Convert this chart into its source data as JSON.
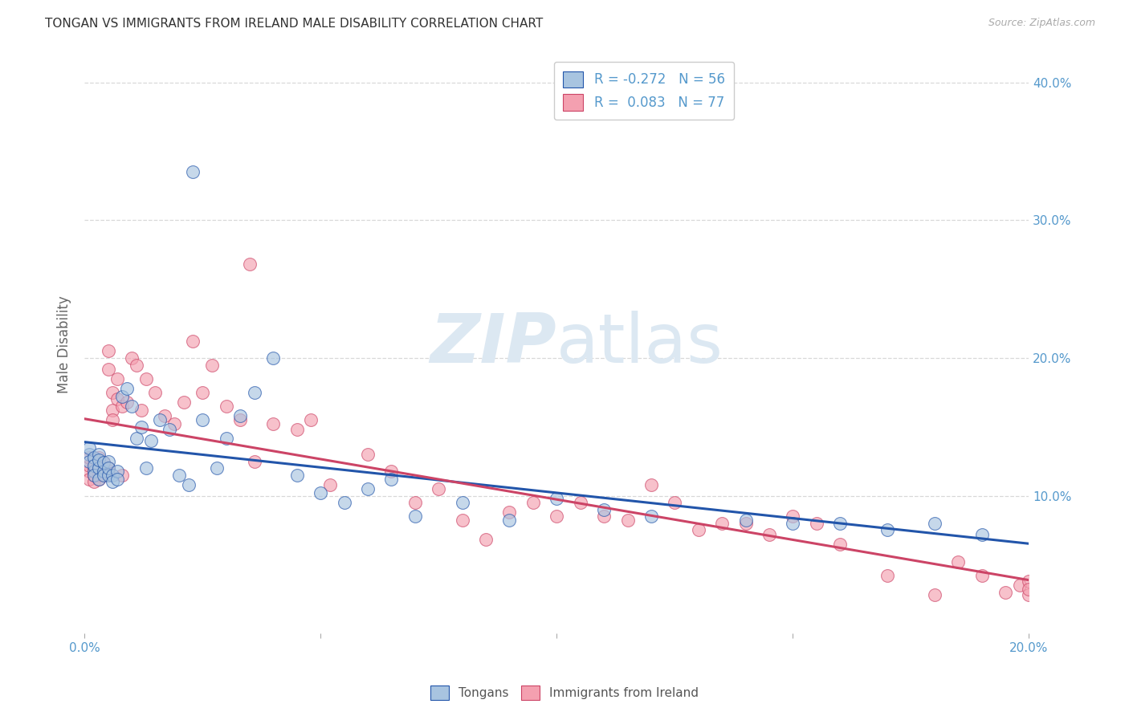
{
  "title": "TONGAN VS IMMIGRANTS FROM IRELAND MALE DISABILITY CORRELATION CHART",
  "source": "Source: ZipAtlas.com",
  "ylabel": "Male Disability",
  "xlim": [
    0.0,
    0.2
  ],
  "ylim": [
    0.0,
    0.42
  ],
  "yticks": [
    0.1,
    0.2,
    0.3,
    0.4
  ],
  "ytick_labels": [
    "10.0%",
    "20.0%",
    "30.0%",
    "40.0%"
  ],
  "xticks": [
    0.0,
    0.05,
    0.1,
    0.15,
    0.2
  ],
  "xtick_labels": [
    "0.0%",
    "",
    "",
    "",
    "20.0%"
  ],
  "legend_label1": "Tongans",
  "legend_label2": "Immigrants from Ireland",
  "R1": -0.272,
  "N1": 56,
  "R2": 0.083,
  "N2": 77,
  "color_tongan": "#a8c4e0",
  "color_ireland": "#f4a0b0",
  "line_color_tongan": "#2255aa",
  "line_color_ireland": "#cc4466",
  "background_color": "#ffffff",
  "watermark_color": "#dce8f2",
  "title_color": "#333333",
  "axis_color": "#5599cc",
  "grid_color": "#d8d8d8",
  "tongans_x": [
    0.001,
    0.001,
    0.001,
    0.002,
    0.002,
    0.002,
    0.002,
    0.003,
    0.003,
    0.003,
    0.003,
    0.004,
    0.004,
    0.004,
    0.005,
    0.005,
    0.005,
    0.006,
    0.006,
    0.007,
    0.007,
    0.008,
    0.009,
    0.01,
    0.011,
    0.012,
    0.013,
    0.014,
    0.016,
    0.018,
    0.02,
    0.022,
    0.025,
    0.028,
    0.03,
    0.033,
    0.036,
    0.04,
    0.023,
    0.045,
    0.05,
    0.055,
    0.06,
    0.065,
    0.07,
    0.08,
    0.09,
    0.1,
    0.11,
    0.12,
    0.14,
    0.15,
    0.16,
    0.17,
    0.18,
    0.19
  ],
  "tongans_y": [
    0.13,
    0.135,
    0.125,
    0.118,
    0.128,
    0.122,
    0.115,
    0.13,
    0.12,
    0.126,
    0.112,
    0.118,
    0.124,
    0.115,
    0.125,
    0.115,
    0.12,
    0.115,
    0.11,
    0.118,
    0.112,
    0.172,
    0.178,
    0.165,
    0.142,
    0.15,
    0.12,
    0.14,
    0.155,
    0.148,
    0.115,
    0.108,
    0.155,
    0.12,
    0.142,
    0.158,
    0.175,
    0.2,
    0.335,
    0.115,
    0.102,
    0.095,
    0.105,
    0.112,
    0.085,
    0.095,
    0.082,
    0.098,
    0.09,
    0.085,
    0.082,
    0.08,
    0.08,
    0.075,
    0.08,
    0.072
  ],
  "ireland_x": [
    0.001,
    0.001,
    0.001,
    0.001,
    0.002,
    0.002,
    0.002,
    0.002,
    0.002,
    0.003,
    0.003,
    0.003,
    0.003,
    0.004,
    0.004,
    0.004,
    0.005,
    0.005,
    0.005,
    0.005,
    0.006,
    0.006,
    0.006,
    0.007,
    0.007,
    0.008,
    0.008,
    0.009,
    0.01,
    0.011,
    0.012,
    0.013,
    0.015,
    0.017,
    0.019,
    0.021,
    0.023,
    0.025,
    0.027,
    0.03,
    0.033,
    0.036,
    0.04,
    0.045,
    0.048,
    0.052,
    0.035,
    0.06,
    0.065,
    0.07,
    0.075,
    0.08,
    0.085,
    0.09,
    0.095,
    0.1,
    0.105,
    0.11,
    0.115,
    0.12,
    0.125,
    0.13,
    0.135,
    0.14,
    0.145,
    0.15,
    0.155,
    0.16,
    0.17,
    0.18,
    0.185,
    0.19,
    0.195,
    0.198,
    0.2,
    0.2,
    0.2
  ],
  "ireland_y": [
    0.118,
    0.122,
    0.128,
    0.112,
    0.115,
    0.12,
    0.125,
    0.115,
    0.11,
    0.12,
    0.128,
    0.115,
    0.112,
    0.118,
    0.124,
    0.115,
    0.192,
    0.12,
    0.205,
    0.118,
    0.162,
    0.155,
    0.175,
    0.17,
    0.185,
    0.165,
    0.115,
    0.168,
    0.2,
    0.195,
    0.162,
    0.185,
    0.175,
    0.158,
    0.152,
    0.168,
    0.212,
    0.175,
    0.195,
    0.165,
    0.155,
    0.125,
    0.152,
    0.148,
    0.155,
    0.108,
    0.268,
    0.13,
    0.118,
    0.095,
    0.105,
    0.082,
    0.068,
    0.088,
    0.095,
    0.085,
    0.095,
    0.085,
    0.082,
    0.108,
    0.095,
    0.075,
    0.08,
    0.08,
    0.072,
    0.085,
    0.08,
    0.065,
    0.042,
    0.028,
    0.052,
    0.042,
    0.03,
    0.035,
    0.028,
    0.038,
    0.032
  ]
}
